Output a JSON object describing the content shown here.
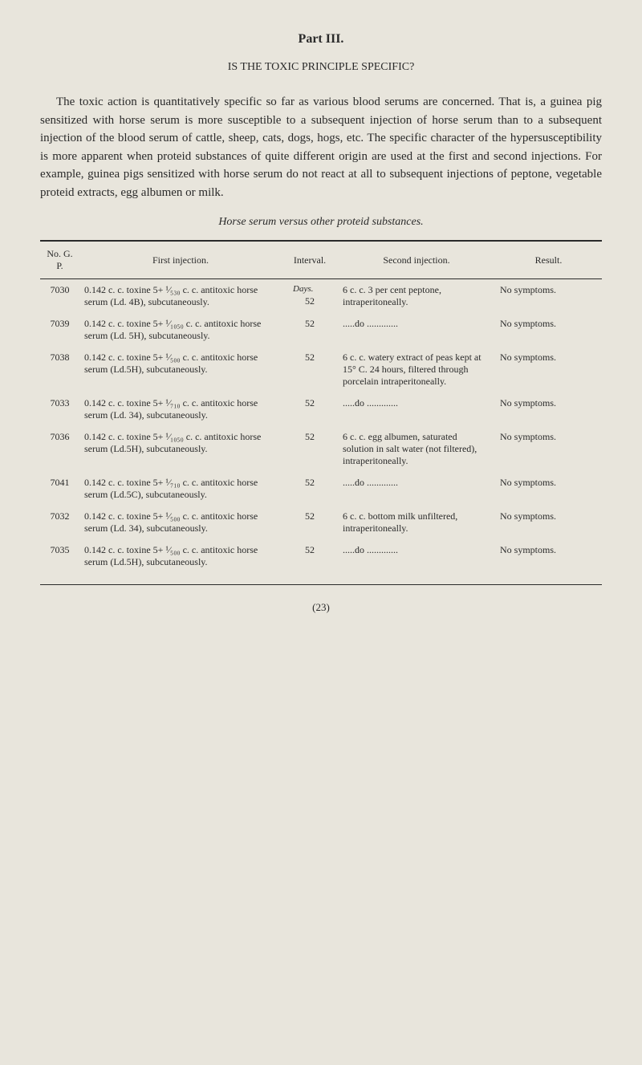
{
  "part_title": "Part III.",
  "subtitle": "IS THE TOXIC PRINCIPLE SPECIFIC?",
  "paragraph": "The toxic action is quantitatively specific so far as various blood serums are concerned. That is, a guinea pig sensitized with horse serum is more susceptible to a subsequent injection of horse serum than to a subsequent injection of the blood serum of cattle, sheep, cats, dogs, hogs, etc. The specific character of the hypersusceptibility is more apparent when proteid substances of quite different origin are used at the first and second injections. For example, guinea pigs sensitized with horse serum do not react at all to subsequent injections of peptone, vegetable proteid extracts, egg albumen or milk.",
  "table_title": "Horse serum versus other proteid substances.",
  "headers": {
    "no": "No. G. P.",
    "first": "First injection.",
    "interval": "Interval.",
    "second": "Second injection.",
    "result": "Result."
  },
  "days_label": "Days.",
  "rows": [
    {
      "no": "7030",
      "first": "0.142 c. c. toxine 5+ ¹⁄₅₃₀ c. c. antitoxic horse serum (Ld. 4B), subcutaneously.",
      "interval": "52",
      "second": "6 c. c. 3 per cent peptone, intraperitoneally.",
      "result": "No symptoms."
    },
    {
      "no": "7039",
      "first": "0.142 c. c. toxine 5+ ¹⁄₁₀₅₀ c. c. antitoxic horse serum (Ld. 5H), subcutaneously.",
      "interval": "52",
      "second": ".....do .............",
      "result": "No symptoms."
    },
    {
      "no": "7038",
      "first": "0.142 c. c. toxine 5+ ¹⁄₅₀₀ c. c. antitoxic horse serum (Ld.5H), subcutaneously.",
      "interval": "52",
      "second": "6 c. c. watery extract of peas kept at 15° C. 24 hours, filtered through porcelain intraperitoneally.",
      "result": "No symptoms."
    },
    {
      "no": "7033",
      "first": "0.142 c. c. toxine 5+ ¹⁄₇₁₀ c. c. antitoxic horse serum (Ld. 34), subcutaneously.",
      "interval": "52",
      "second": ".....do .............",
      "result": "No symptoms."
    },
    {
      "no": "7036",
      "first": "0.142 c. c. toxine 5+ ¹⁄₁₀₅₀ c. c. antitoxic horse serum (Ld.5H), subcutaneously.",
      "interval": "52",
      "second": "6 c. c. egg albumen, saturated solution in salt water (not filtered), intraperitoneally.",
      "result": "No symptoms."
    },
    {
      "no": "7041",
      "first": "0.142 c. c. toxine 5+ ¹⁄₇₁₀ c. c. antitoxic horse serum (Ld.5C), subcutaneously.",
      "interval": "52",
      "second": ".....do .............",
      "result": "No symptoms."
    },
    {
      "no": "7032",
      "first": "0.142 c. c. toxine 5+ ¹⁄₅₀₀ c. c. antitoxic horse serum (Ld. 34), subcutaneously.",
      "interval": "52",
      "second": "6 c. c. bottom milk unfiltered, intraperitoneally.",
      "result": "No symptoms."
    },
    {
      "no": "7035",
      "first": "0.142 c. c. toxine 5+ ¹⁄₅₀₀ c. c. antitoxic horse serum (Ld.5H), subcutaneously.",
      "interval": "52",
      "second": ".....do .............",
      "result": "No symptoms."
    }
  ],
  "page_num": "(23)"
}
